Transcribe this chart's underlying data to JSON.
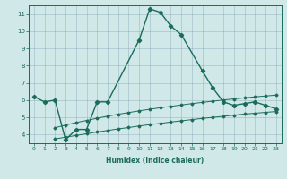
{
  "xlabel": "Humidex (Indice chaleur)",
  "line_color": "#1a6b5a",
  "bg_color": "#d0e8e8",
  "ylim": [
    3.5,
    11.5
  ],
  "xlim": [
    -0.5,
    23.5
  ],
  "yticks": [
    4,
    5,
    6,
    7,
    8,
    9,
    10,
    11
  ],
  "xticks": [
    0,
    1,
    2,
    3,
    4,
    5,
    6,
    7,
    8,
    9,
    10,
    11,
    12,
    13,
    14,
    15,
    16,
    17,
    18,
    19,
    20,
    21,
    22,
    23
  ],
  "main_x": [
    0,
    1,
    2,
    3,
    4,
    5,
    6,
    7,
    10,
    11,
    12,
    13,
    14,
    16,
    17,
    18,
    19,
    20,
    21,
    22,
    23
  ],
  "main_y": [
    6.2,
    5.9,
    6.0,
    3.7,
    4.3,
    4.3,
    5.9,
    5.9,
    9.5,
    11.3,
    11.1,
    10.3,
    9.8,
    7.7,
    6.7,
    5.9,
    5.7,
    5.8,
    5.9,
    5.7,
    5.5
  ],
  "upper_x": [
    2,
    3,
    4,
    5,
    6,
    7,
    8,
    9,
    10,
    11,
    12,
    13,
    14,
    15,
    16,
    17,
    18,
    19,
    20,
    21,
    22,
    23
  ],
  "upper_y": [
    4.4,
    4.55,
    4.7,
    4.82,
    4.95,
    5.07,
    5.18,
    5.28,
    5.38,
    5.47,
    5.56,
    5.64,
    5.72,
    5.8,
    5.87,
    5.94,
    6.01,
    6.07,
    6.13,
    6.19,
    6.24,
    6.29
  ],
  "lower_x": [
    2,
    3,
    4,
    5,
    6,
    7,
    8,
    9,
    10,
    11,
    12,
    13,
    14,
    15,
    16,
    17,
    18,
    19,
    20,
    21,
    22,
    23
  ],
  "lower_y": [
    3.75,
    3.85,
    3.95,
    4.05,
    4.15,
    4.24,
    4.33,
    4.41,
    4.5,
    4.58,
    4.65,
    4.73,
    4.8,
    4.87,
    4.94,
    5.0,
    5.06,
    5.13,
    5.19,
    5.24,
    5.29,
    5.34
  ]
}
